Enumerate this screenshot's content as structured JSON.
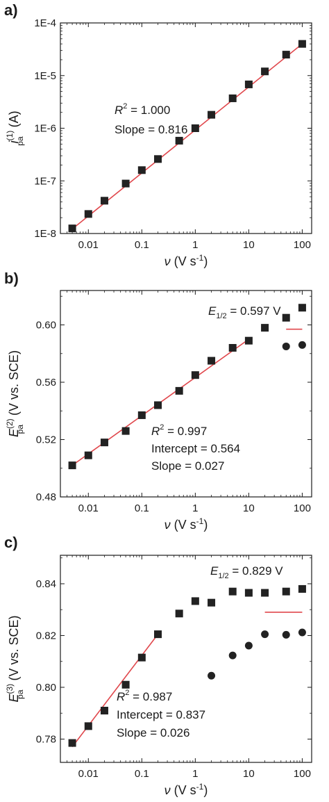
{
  "chart_data": [
    {
      "panel_label": "a)",
      "type": "scatter",
      "x_scale": "log",
      "y_scale": "log",
      "xlim": [
        0.003,
        150
      ],
      "ylim": [
        1e-08,
        0.0001
      ],
      "x_ticks": [
        0.01,
        0.1,
        1,
        10,
        100
      ],
      "x_tick_labels": [
        "0.01",
        "0.1",
        "1",
        "10",
        "100"
      ],
      "y_ticks": [
        1e-08,
        1e-07,
        1e-06,
        1e-05,
        0.0001
      ],
      "y_tick_labels": [
        "1E-8",
        "1E-7",
        "1E-6",
        "1E-5",
        "1E-4"
      ],
      "xlabel": {
        "symbol": "ν",
        "unit": "(V s",
        "sup": "-1",
        "close": ")"
      },
      "ylabel": {
        "symbol": "i",
        "sup": "(1)",
        "sub": "pa",
        "unit": "(A)"
      },
      "series": [
        {
          "marker": "square",
          "x": [
            0.005,
            0.01,
            0.02,
            0.05,
            0.1,
            0.2,
            0.5,
            1,
            2,
            5,
            10,
            20,
            50,
            100
          ],
          "y": [
            1.25e-08,
            2.35e-08,
            4.2e-08,
            8.9e-08,
            1.6e-07,
            2.6e-07,
            5.8e-07,
            1e-06,
            1.8e-06,
            3.7e-06,
            6.8e-06,
            1.2e-05,
            2.5e-05,
            4e-05
          ]
        }
      ],
      "fit_line": {
        "color": "#e0474c",
        "x": [
          0.005,
          100
        ],
        "y": [
          1.22e-08,
          4e-05
        ]
      },
      "annotation": {
        "r2_symbol": "R",
        "r2_sup": "2",
        "r2_text": " = 1.000",
        "lines": [
          "Slope = 0.816"
        ]
      }
    },
    {
      "panel_label": "b)",
      "type": "scatter",
      "x_scale": "log",
      "y_scale": "linear",
      "xlim": [
        0.003,
        150
      ],
      "ylim": [
        0.48,
        0.624
      ],
      "x_ticks": [
        0.01,
        0.1,
        1,
        10,
        100
      ],
      "x_tick_labels": [
        "0.01",
        "0.1",
        "1",
        "10",
        "100"
      ],
      "y_ticks": [
        0.48,
        0.52,
        0.56,
        0.6
      ],
      "y_tick_labels": [
        "0.48",
        "0.52",
        "0.56",
        "0.60"
      ],
      "xlabel": {
        "symbol": "ν",
        "unit": "(V s",
        "sup": "-1",
        "close": ")"
      },
      "ylabel": {
        "symbol": "E",
        "sup": "(2)",
        "sub": "pa",
        "unit": "(V vs. SCE)"
      },
      "series": [
        {
          "marker": "square",
          "x": [
            0.005,
            0.01,
            0.02,
            0.05,
            0.1,
            0.2,
            0.5,
            1,
            2,
            5,
            10,
            20,
            50,
            100
          ],
          "y": [
            0.502,
            0.509,
            0.518,
            0.526,
            0.537,
            0.544,
            0.554,
            0.565,
            0.575,
            0.584,
            0.589,
            0.598,
            0.605,
            0.612
          ]
        },
        {
          "marker": "circle",
          "x": [
            50,
            100
          ],
          "y": [
            0.585,
            0.586
          ]
        }
      ],
      "fit_line": {
        "color": "#e0474c",
        "x": [
          0.005,
          10
        ],
        "y": [
          0.502,
          0.59
        ]
      },
      "e_half_line": {
        "color": "#e0474c",
        "x": [
          50,
          100
        ],
        "y": 0.597
      },
      "e_half_label": {
        "symbol": "E",
        "sub": "1/2",
        "text": " = 0.597 V"
      },
      "annotation": {
        "r2_symbol": "R",
        "r2_sup": "2",
        "r2_text": " = 0.997",
        "lines": [
          "Intercept = 0.564",
          "Slope = 0.027"
        ]
      }
    },
    {
      "panel_label": "c)",
      "type": "scatter",
      "x_scale": "log",
      "y_scale": "linear",
      "xlim": [
        0.003,
        150
      ],
      "ylim": [
        0.771,
        0.851
      ],
      "x_ticks": [
        0.01,
        0.1,
        1,
        10,
        100
      ],
      "x_tick_labels": [
        "0.01",
        "0.1",
        "1",
        "10",
        "100"
      ],
      "y_ticks": [
        0.78,
        0.8,
        0.82,
        0.84
      ],
      "y_tick_labels": [
        "0.78",
        "0.80",
        "0.82",
        "0.84"
      ],
      "xlabel": {
        "symbol": "ν",
        "unit": "(V s",
        "sup": "-1",
        "close": ")"
      },
      "ylabel": {
        "symbol": "E",
        "sup": "(3)",
        "sub": "pa",
        "unit": "(V vs. SCE)"
      },
      "series": [
        {
          "marker": "square",
          "x": [
            0.005,
            0.01,
            0.02,
            0.05,
            0.1,
            0.2,
            0.5,
            1,
            2,
            5,
            10,
            20,
            50,
            100
          ],
          "y": [
            0.7785,
            0.785,
            0.791,
            0.801,
            0.8115,
            0.8205,
            0.8285,
            0.8333,
            0.8327,
            0.837,
            0.8365,
            0.8365,
            0.837,
            0.838
          ]
        },
        {
          "marker": "circle",
          "x": [
            2,
            5,
            10,
            20,
            50,
            100
          ],
          "y": [
            0.8045,
            0.8123,
            0.8161,
            0.8205,
            0.8203,
            0.8212
          ]
        }
      ],
      "fit_line": {
        "color": "#e0474c",
        "x": [
          0.005,
          0.2
        ],
        "y": [
          0.777,
          0.8205
        ]
      },
      "e_half_line": {
        "color": "#e0474c",
        "x": [
          20,
          100
        ],
        "y": 0.829
      },
      "e_half_label": {
        "symbol": "E",
        "sub": "1/2",
        "text": " = 0.829 V"
      },
      "annotation": {
        "r2_symbol": "R",
        "r2_sup": "2",
        "r2_text": " = 0.987",
        "lines": [
          "Intercept = 0.837",
          "Slope = 0.026"
        ]
      }
    }
  ]
}
